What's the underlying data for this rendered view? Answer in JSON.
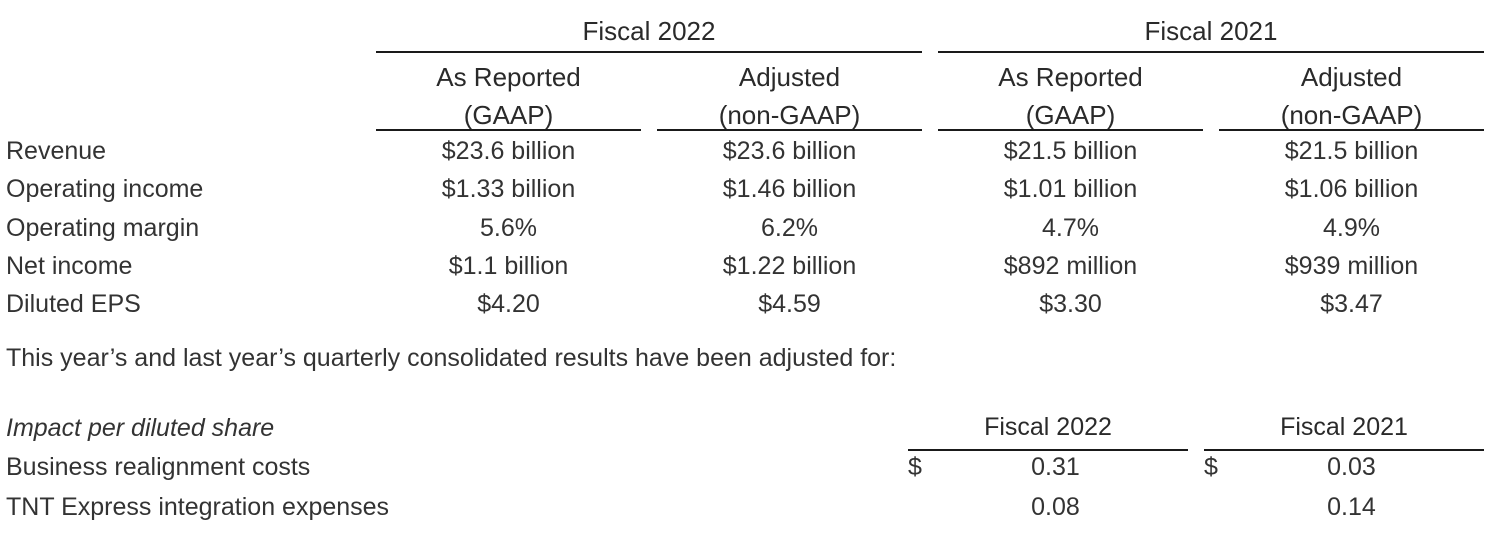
{
  "summary_table": {
    "period_headers": [
      "Fiscal 2022",
      "Fiscal 2021"
    ],
    "column_headers": [
      {
        "line1": "As Reported",
        "line2": "(GAAP)"
      },
      {
        "line1": "Adjusted",
        "line2": "(non-GAAP)"
      },
      {
        "line1": "As Reported",
        "line2": "(GAAP)"
      },
      {
        "line1": "Adjusted",
        "line2": "(non-GAAP)"
      }
    ],
    "rows": [
      {
        "label": "Revenue",
        "values": [
          "$23.6 billion",
          "$23.6 billion",
          "$21.5 billion",
          "$21.5 billion"
        ]
      },
      {
        "label": "Operating income",
        "values": [
          "$1.33 billion",
          "$1.46 billion",
          "$1.01 billion",
          "$1.06 billion"
        ]
      },
      {
        "label": "Operating margin",
        "values": [
          "5.6%",
          "6.2%",
          "4.7%",
          "4.9%"
        ]
      },
      {
        "label": "Net income",
        "values": [
          "$1.1 billion",
          "$1.22 billion",
          "$892 million",
          "$939 million"
        ]
      },
      {
        "label": "Diluted EPS",
        "values": [
          "$4.20",
          "$4.59",
          "$3.30",
          "$3.47"
        ]
      }
    ]
  },
  "note": "This year’s and last year’s quarterly consolidated results have been adjusted for:",
  "impact_table": {
    "title": "Impact per diluted share",
    "period_headers": [
      "Fiscal 2022",
      "Fiscal 2021"
    ],
    "currency_symbol": "$",
    "rows": [
      {
        "label": "Business realignment costs",
        "show_currency": true,
        "values": [
          "0.31",
          "0.03"
        ]
      },
      {
        "label": "TNT Express integration expenses",
        "show_currency": false,
        "values": [
          "0.08",
          "0.14"
        ]
      }
    ]
  }
}
